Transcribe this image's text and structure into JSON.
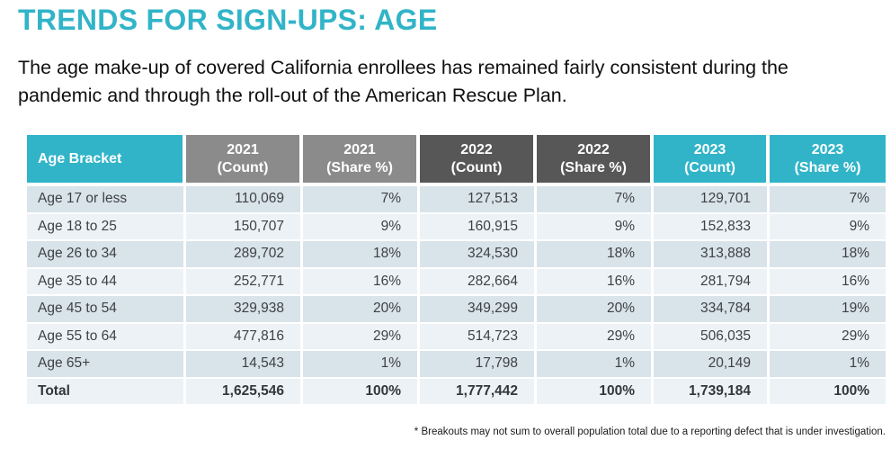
{
  "slide": {
    "title": "TRENDS FOR SIGN-UPS: AGE",
    "subtitle": "The age make-up of covered California enrollees has remained fairly consistent during the pandemic and through the roll-out of the American Rescue Plan.",
    "footnote": "* Breakouts may not sum to overall population total due to a reporting defect that is under investigation."
  },
  "colors": {
    "accent_teal": "#31B4C8",
    "header_gray_medium": "#8B8B8B",
    "header_gray_dark": "#575757",
    "row_stripe_dark": "#D9E3EA",
    "row_stripe_light": "#EDF2F6",
    "cell_text": "#3E4246"
  },
  "chart_data": {
    "type": "table",
    "title": "TRENDS FOR SIGN-UPS: AGE",
    "columns": [
      {
        "line1": "Age Bracket",
        "line2": "",
        "header_style": "teal"
      },
      {
        "line1": "2021",
        "line2": "(Count)",
        "header_style": "gray-medium"
      },
      {
        "line1": "2021",
        "line2": "(Share %)",
        "header_style": "gray-medium"
      },
      {
        "line1": "2022",
        "line2": "(Count)",
        "header_style": "gray-dark"
      },
      {
        "line1": "2022",
        "line2": "(Share %)",
        "header_style": "gray-dark"
      },
      {
        "line1": "2023",
        "line2": "(Count)",
        "header_style": "teal"
      },
      {
        "line1": "2023",
        "line2": "(Share %)",
        "header_style": "teal"
      }
    ],
    "rows": [
      {
        "cells": [
          "Age 17 or less",
          "110,069",
          "7%",
          "127,513",
          "7%",
          "129,701",
          "7%"
        ],
        "bold": false
      },
      {
        "cells": [
          "Age 18 to 25",
          "150,707",
          "9%",
          "160,915",
          "9%",
          "152,833",
          "9%"
        ],
        "bold": false
      },
      {
        "cells": [
          "Age 26 to 34",
          "289,702",
          "18%",
          "324,530",
          "18%",
          "313,888",
          "18%"
        ],
        "bold": false
      },
      {
        "cells": [
          "Age 35 to 44",
          "252,771",
          "16%",
          "282,664",
          "16%",
          "281,794",
          "16%"
        ],
        "bold": false
      },
      {
        "cells": [
          "Age 45 to 54",
          "329,938",
          "20%",
          "349,299",
          "20%",
          "334,784",
          "19%"
        ],
        "bold": false
      },
      {
        "cells": [
          "Age 55 to 64",
          "477,816",
          "29%",
          "514,723",
          "29%",
          "506,035",
          "29%"
        ],
        "bold": false
      },
      {
        "cells": [
          "Age 65+",
          "14,543",
          "1%",
          "17,798",
          "1%",
          "20,149",
          "1%"
        ],
        "bold": false
      },
      {
        "cells": [
          "Total",
          "1,625,546",
          "100%",
          "1,777,442",
          "100%",
          "1,739,184",
          "100%"
        ],
        "bold": true
      }
    ]
  }
}
